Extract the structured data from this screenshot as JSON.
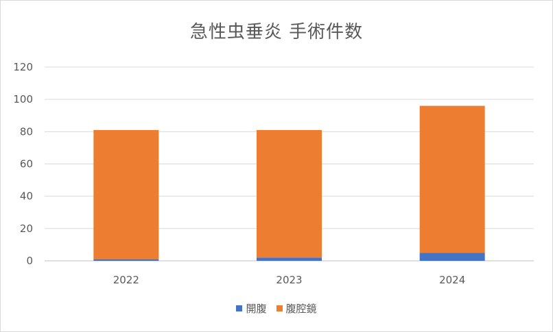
{
  "chart_data": {
    "type": "bar",
    "stacked": true,
    "title": "急性虫垂炎 手術件数",
    "categories": [
      "2022",
      "2023",
      "2024"
    ],
    "series": [
      {
        "name": "開腹",
        "values": [
          1,
          2,
          5
        ],
        "color": "#4472C4"
      },
      {
        "name": "腹腔鏡",
        "values": [
          80,
          79,
          91
        ],
        "color": "#ED7D31"
      }
    ],
    "xlabel": "",
    "ylabel": "",
    "ylim": [
      0,
      120
    ],
    "yticks": [
      0,
      20,
      40,
      60,
      80,
      100,
      120
    ],
    "grid": true,
    "legend_position": "bottom"
  }
}
